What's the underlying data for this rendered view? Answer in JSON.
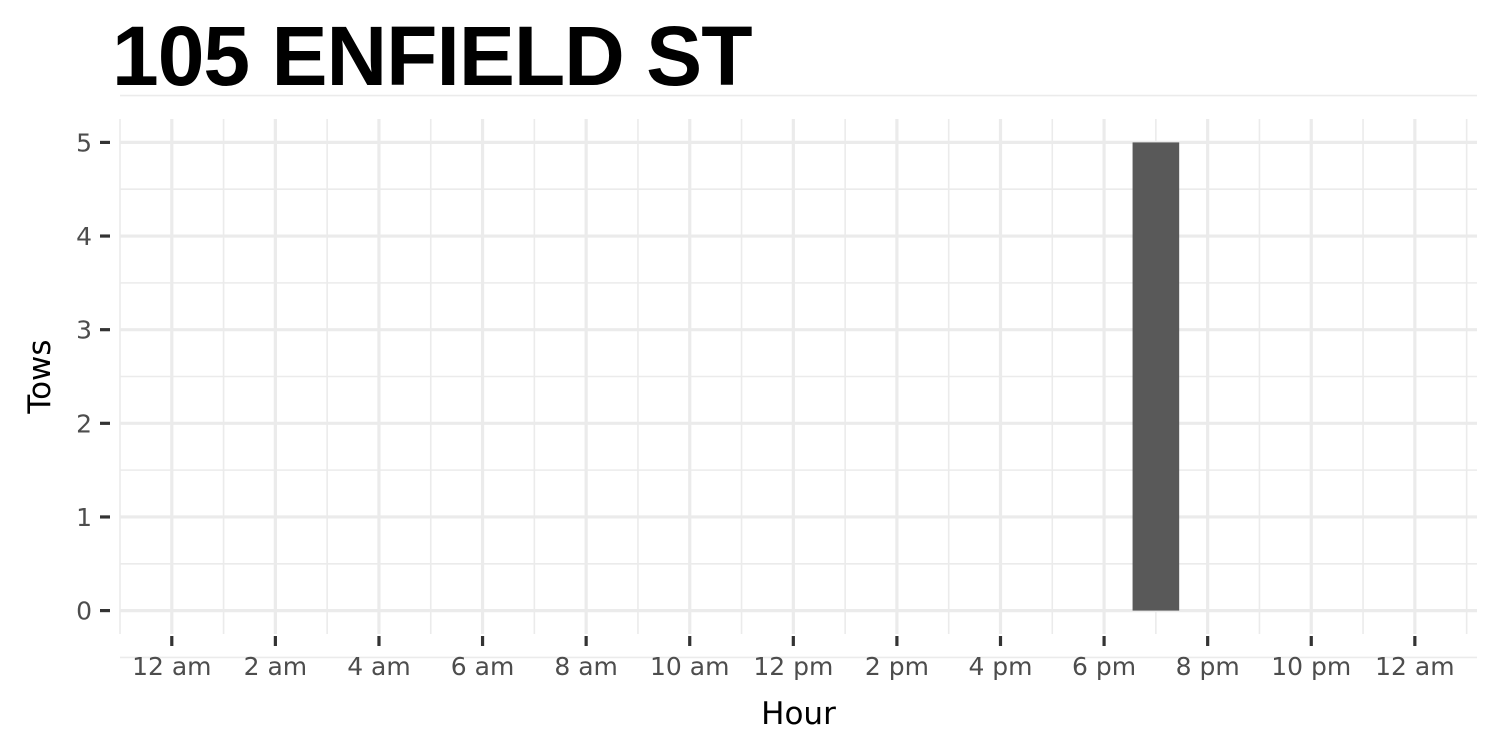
{
  "chart_data": {
    "type": "bar",
    "title": "105 ENFIELD ST",
    "xlabel": "Hour",
    "ylabel": "Tows",
    "x_tick_labels": [
      "12 am",
      "2 am",
      "4 am",
      "6 am",
      "8 am",
      "10 am",
      "12 pm",
      "2 pm",
      "4 pm",
      "6 pm",
      "8 pm",
      "10 pm",
      "12 am"
    ],
    "x_tick_hours": [
      0,
      2,
      4,
      6,
      8,
      10,
      12,
      14,
      16,
      18,
      20,
      22,
      24
    ],
    "xlim": [
      -1,
      25.2
    ],
    "y_ticks": [
      0,
      1,
      2,
      3,
      4,
      5
    ],
    "ylim": [
      -0.25,
      5.25
    ],
    "bars": [
      {
        "hour": 19,
        "value": 5
      }
    ],
    "bar_width_hours": 0.9,
    "grid": true,
    "colors": {
      "bar": "#595959",
      "grid": "#ebebeb",
      "background": "#ffffff"
    }
  }
}
